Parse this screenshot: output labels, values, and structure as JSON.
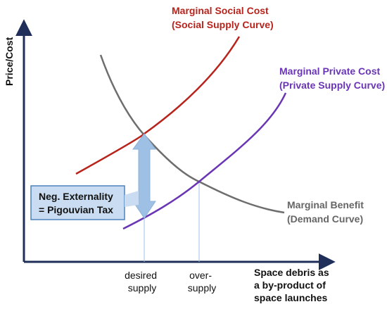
{
  "axes": {
    "y_label": "Price/Cost",
    "x_label_lines": [
      "Space debris as",
      "a by-product of",
      "space launches"
    ]
  },
  "curves": {
    "social_cost": {
      "lines": [
        "Marginal Social Cost",
        "(Social Supply Curve)"
      ],
      "color": "#b8231c"
    },
    "private_cost": {
      "lines": [
        "Marginal Private Cost",
        "(Private Supply Curve)"
      ],
      "color": "#6a35b5"
    },
    "benefit": {
      "lines": [
        "Marginal Benefit",
        "(Demand Curve)"
      ],
      "color": "#666666"
    }
  },
  "externality_box": {
    "lines": [
      "Neg. Externality",
      "= Pigouvian Tax"
    ]
  },
  "markers": {
    "desired": [
      "desired",
      "supply"
    ],
    "over": [
      "over-",
      "supply"
    ]
  },
  "colors": {
    "axis": "#1f2f5a",
    "arrow_fill": "#9dc0e4",
    "box_fill": "#c9dcf1",
    "box_border": "#4f81bd"
  }
}
